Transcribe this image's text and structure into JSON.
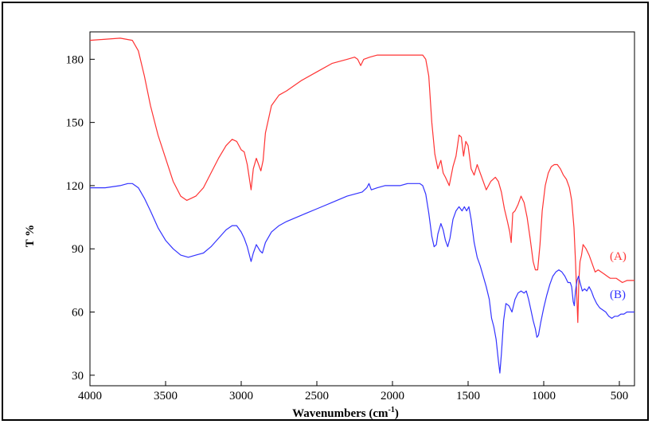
{
  "chart_data": {
    "type": "line",
    "xlabel": "Wavenumbers (cm",
    "xlabel_sup": "-1",
    "xlabel_end": ")",
    "ylabel": "T %",
    "xlim": [
      4000,
      400
    ],
    "ylim": [
      25,
      193
    ],
    "x_ticks": [
      4000,
      3500,
      3000,
      2500,
      2000,
      1500,
      1000,
      500
    ],
    "y_ticks": [
      30,
      60,
      90,
      120,
      150,
      180
    ],
    "grid": false,
    "series": [
      {
        "name": "(A)",
        "color": "#ff3333",
        "points": [
          [
            4000,
            189
          ],
          [
            3800,
            190
          ],
          [
            3720,
            189
          ],
          [
            3680,
            184
          ],
          [
            3640,
            172
          ],
          [
            3600,
            158
          ],
          [
            3550,
            144
          ],
          [
            3500,
            133
          ],
          [
            3450,
            122
          ],
          [
            3400,
            115
          ],
          [
            3360,
            113
          ],
          [
            3300,
            115
          ],
          [
            3250,
            119
          ],
          [
            3200,
            126
          ],
          [
            3150,
            133
          ],
          [
            3100,
            139
          ],
          [
            3060,
            142
          ],
          [
            3030,
            141
          ],
          [
            3000,
            137
          ],
          [
            2980,
            136
          ],
          [
            2960,
            130
          ],
          [
            2935,
            118
          ],
          [
            2920,
            128
          ],
          [
            2900,
            133
          ],
          [
            2870,
            127
          ],
          [
            2855,
            132
          ],
          [
            2840,
            145
          ],
          [
            2800,
            158
          ],
          [
            2750,
            163
          ],
          [
            2700,
            165
          ],
          [
            2600,
            170
          ],
          [
            2500,
            174
          ],
          [
            2400,
            178
          ],
          [
            2300,
            180
          ],
          [
            2250,
            181
          ],
          [
            2230,
            180
          ],
          [
            2210,
            177
          ],
          [
            2190,
            180
          ],
          [
            2150,
            181
          ],
          [
            2100,
            182
          ],
          [
            2050,
            182
          ],
          [
            2000,
            182
          ],
          [
            1950,
            182
          ],
          [
            1900,
            182
          ],
          [
            1850,
            182
          ],
          [
            1800,
            182
          ],
          [
            1780,
            180
          ],
          [
            1760,
            172
          ],
          [
            1740,
            150
          ],
          [
            1720,
            135
          ],
          [
            1700,
            128
          ],
          [
            1680,
            132
          ],
          [
            1665,
            126
          ],
          [
            1650,
            124
          ],
          [
            1625,
            120
          ],
          [
            1600,
            129
          ],
          [
            1580,
            134
          ],
          [
            1560,
            144
          ],
          [
            1545,
            143
          ],
          [
            1530,
            134
          ],
          [
            1515,
            141
          ],
          [
            1500,
            139
          ],
          [
            1480,
            128
          ],
          [
            1460,
            125
          ],
          [
            1440,
            130
          ],
          [
            1420,
            126
          ],
          [
            1400,
            122
          ],
          [
            1380,
            118
          ],
          [
            1350,
            122
          ],
          [
            1320,
            124
          ],
          [
            1300,
            122
          ],
          [
            1280,
            117
          ],
          [
            1260,
            109
          ],
          [
            1240,
            103
          ],
          [
            1225,
            98
          ],
          [
            1215,
            93
          ],
          [
            1205,
            107
          ],
          [
            1190,
            108
          ],
          [
            1170,
            111
          ],
          [
            1150,
            115
          ],
          [
            1130,
            112
          ],
          [
            1110,
            105
          ],
          [
            1090,
            95
          ],
          [
            1070,
            84
          ],
          [
            1055,
            80
          ],
          [
            1040,
            80
          ],
          [
            1025,
            92
          ],
          [
            1010,
            108
          ],
          [
            990,
            120
          ],
          [
            970,
            126
          ],
          [
            950,
            129
          ],
          [
            930,
            130
          ],
          [
            910,
            130
          ],
          [
            890,
            128
          ],
          [
            870,
            125
          ],
          [
            850,
            123
          ],
          [
            830,
            119
          ],
          [
            815,
            113
          ],
          [
            800,
            100
          ],
          [
            790,
            84
          ],
          [
            780,
            65
          ],
          [
            775,
            55
          ],
          [
            768,
            75
          ],
          [
            760,
            84
          ],
          [
            750,
            87
          ],
          [
            740,
            92
          ],
          [
            720,
            90
          ],
          [
            700,
            87
          ],
          [
            680,
            83
          ],
          [
            660,
            79
          ],
          [
            640,
            80
          ],
          [
            620,
            79
          ],
          [
            600,
            78
          ],
          [
            580,
            77
          ],
          [
            560,
            76
          ],
          [
            540,
            76
          ],
          [
            520,
            76
          ],
          [
            500,
            75
          ],
          [
            480,
            74
          ],
          [
            450,
            75
          ],
          [
            420,
            75
          ],
          [
            400,
            75
          ]
        ]
      },
      {
        "name": "(B)",
        "color": "#3333ff",
        "points": [
          [
            4000,
            119
          ],
          [
            3900,
            119
          ],
          [
            3800,
            120
          ],
          [
            3750,
            121
          ],
          [
            3720,
            121
          ],
          [
            3680,
            119
          ],
          [
            3640,
            114
          ],
          [
            3600,
            108
          ],
          [
            3550,
            100
          ],
          [
            3500,
            94
          ],
          [
            3450,
            90
          ],
          [
            3400,
            87
          ],
          [
            3350,
            86
          ],
          [
            3300,
            87
          ],
          [
            3250,
            88
          ],
          [
            3200,
            91
          ],
          [
            3150,
            95
          ],
          [
            3100,
            99
          ],
          [
            3060,
            101
          ],
          [
            3030,
            101
          ],
          [
            3000,
            98
          ],
          [
            2980,
            95
          ],
          [
            2960,
            91
          ],
          [
            2935,
            84
          ],
          [
            2920,
            88
          ],
          [
            2900,
            92
          ],
          [
            2875,
            89
          ],
          [
            2860,
            88
          ],
          [
            2840,
            93
          ],
          [
            2800,
            98
          ],
          [
            2750,
            101
          ],
          [
            2700,
            103
          ],
          [
            2600,
            106
          ],
          [
            2500,
            109
          ],
          [
            2400,
            112
          ],
          [
            2300,
            115
          ],
          [
            2200,
            117
          ],
          [
            2170,
            119
          ],
          [
            2155,
            121
          ],
          [
            2140,
            118
          ],
          [
            2100,
            119
          ],
          [
            2050,
            120
          ],
          [
            2000,
            120
          ],
          [
            1950,
            120
          ],
          [
            1900,
            121
          ],
          [
            1850,
            121
          ],
          [
            1820,
            121
          ],
          [
            1800,
            120
          ],
          [
            1780,
            116
          ],
          [
            1760,
            107
          ],
          [
            1740,
            96
          ],
          [
            1725,
            91
          ],
          [
            1710,
            92
          ],
          [
            1700,
            97
          ],
          [
            1680,
            102
          ],
          [
            1665,
            99
          ],
          [
            1650,
            94
          ],
          [
            1635,
            91
          ],
          [
            1620,
            95
          ],
          [
            1600,
            104
          ],
          [
            1580,
            108
          ],
          [
            1560,
            110
          ],
          [
            1540,
            108
          ],
          [
            1525,
            110
          ],
          [
            1510,
            108
          ],
          [
            1495,
            110
          ],
          [
            1480,
            104
          ],
          [
            1460,
            93
          ],
          [
            1440,
            86
          ],
          [
            1420,
            82
          ],
          [
            1400,
            77
          ],
          [
            1380,
            72
          ],
          [
            1360,
            66
          ],
          [
            1345,
            57
          ],
          [
            1330,
            53
          ],
          [
            1315,
            47
          ],
          [
            1300,
            37
          ],
          [
            1290,
            31
          ],
          [
            1280,
            40
          ],
          [
            1265,
            56
          ],
          [
            1250,
            64
          ],
          [
            1230,
            63
          ],
          [
            1210,
            60
          ],
          [
            1190,
            66
          ],
          [
            1170,
            69
          ],
          [
            1150,
            70
          ],
          [
            1130,
            69
          ],
          [
            1115,
            70
          ],
          [
            1100,
            66
          ],
          [
            1085,
            61
          ],
          [
            1070,
            56
          ],
          [
            1055,
            52
          ],
          [
            1045,
            48
          ],
          [
            1035,
            49
          ],
          [
            1020,
            55
          ],
          [
            1000,
            62
          ],
          [
            980,
            68
          ],
          [
            960,
            73
          ],
          [
            940,
            77
          ],
          [
            920,
            79
          ],
          [
            900,
            80
          ],
          [
            880,
            79
          ],
          [
            860,
            77
          ],
          [
            840,
            74
          ],
          [
            825,
            74
          ],
          [
            815,
            72
          ],
          [
            805,
            65
          ],
          [
            798,
            63
          ],
          [
            790,
            70
          ],
          [
            780,
            75
          ],
          [
            770,
            77
          ],
          [
            760,
            74
          ],
          [
            745,
            70
          ],
          [
            730,
            71
          ],
          [
            715,
            70
          ],
          [
            700,
            72
          ],
          [
            685,
            70
          ],
          [
            670,
            67
          ],
          [
            650,
            64
          ],
          [
            630,
            62
          ],
          [
            610,
            61
          ],
          [
            590,
            60
          ],
          [
            570,
            58
          ],
          [
            550,
            57
          ],
          [
            530,
            58
          ],
          [
            510,
            58
          ],
          [
            490,
            59
          ],
          [
            470,
            59
          ],
          [
            450,
            60
          ],
          [
            430,
            60
          ],
          [
            400,
            60
          ]
        ]
      }
    ]
  }
}
